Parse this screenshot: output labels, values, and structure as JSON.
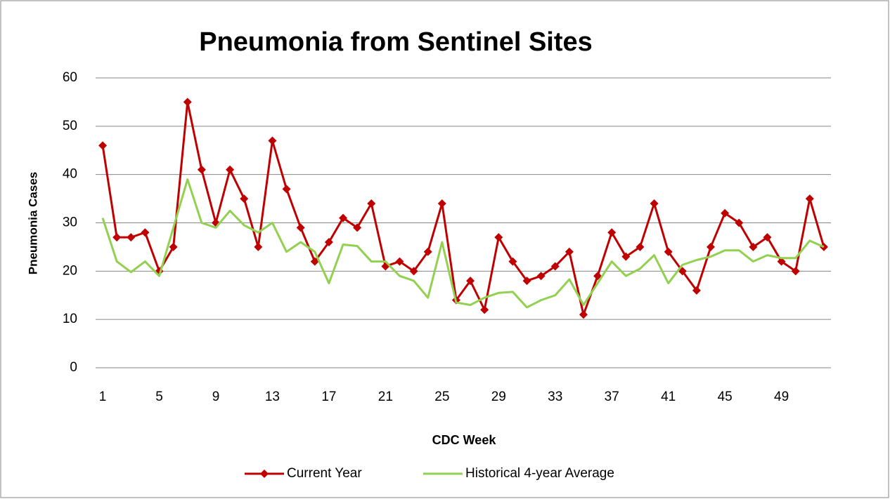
{
  "chart_data": {
    "type": "line",
    "title": "Pneumonia from Sentinel Sites",
    "x_label": "CDC Week",
    "y_label": "Pneumonia Cases",
    "categories": [
      "1",
      null,
      null,
      null,
      "5",
      null,
      null,
      null,
      "9",
      null,
      null,
      null,
      "13",
      null,
      null,
      null,
      "17",
      null,
      null,
      null,
      "21",
      null,
      null,
      null,
      "25",
      null,
      null,
      null,
      "29",
      null,
      null,
      null,
      "33",
      null,
      null,
      null,
      "37",
      null,
      null,
      null,
      "41",
      null,
      null,
      null,
      "45",
      null,
      null,
      null,
      "49",
      null,
      null,
      null
    ],
    "series": [
      {
        "name": "Current Year",
        "color": "#c00000",
        "marker": "diamond",
        "values": [
          46,
          27,
          27,
          28,
          20,
          25,
          55,
          41,
          30,
          41,
          35,
          25,
          47,
          37,
          29,
          22,
          26,
          31,
          29,
          34,
          21,
          22,
          20,
          24,
          34,
          14,
          18,
          12,
          27,
          22,
          18,
          19,
          21,
          24,
          11,
          19,
          28,
          23,
          25,
          34,
          24,
          20,
          16,
          25,
          32,
          30,
          25,
          27,
          22,
          20,
          35,
          25
        ]
      },
      {
        "name": "Historical 4-year Average",
        "color": "#92d050",
        "marker": "none",
        "values": [
          31,
          22,
          19.8,
          22,
          19,
          29,
          39,
          30,
          29,
          32.5,
          29.5,
          28,
          30,
          24,
          26,
          24,
          17.5,
          25.5,
          25.2,
          22,
          22,
          19,
          18,
          14.5,
          26,
          13.5,
          13,
          14.5,
          15.5,
          15.7,
          12.5,
          14,
          15,
          18.3,
          13,
          17.5,
          22,
          19,
          20.5,
          23.3,
          17.5,
          21.3,
          22.3,
          23,
          24.3,
          24.3,
          22,
          23.3,
          22.7,
          22.7,
          26.3,
          25
        ]
      }
    ],
    "ylim": [
      0,
      60
    ],
    "yticks": [
      0,
      10,
      20,
      30,
      40,
      50,
      60
    ],
    "grid": true,
    "legend": "bottom"
  }
}
